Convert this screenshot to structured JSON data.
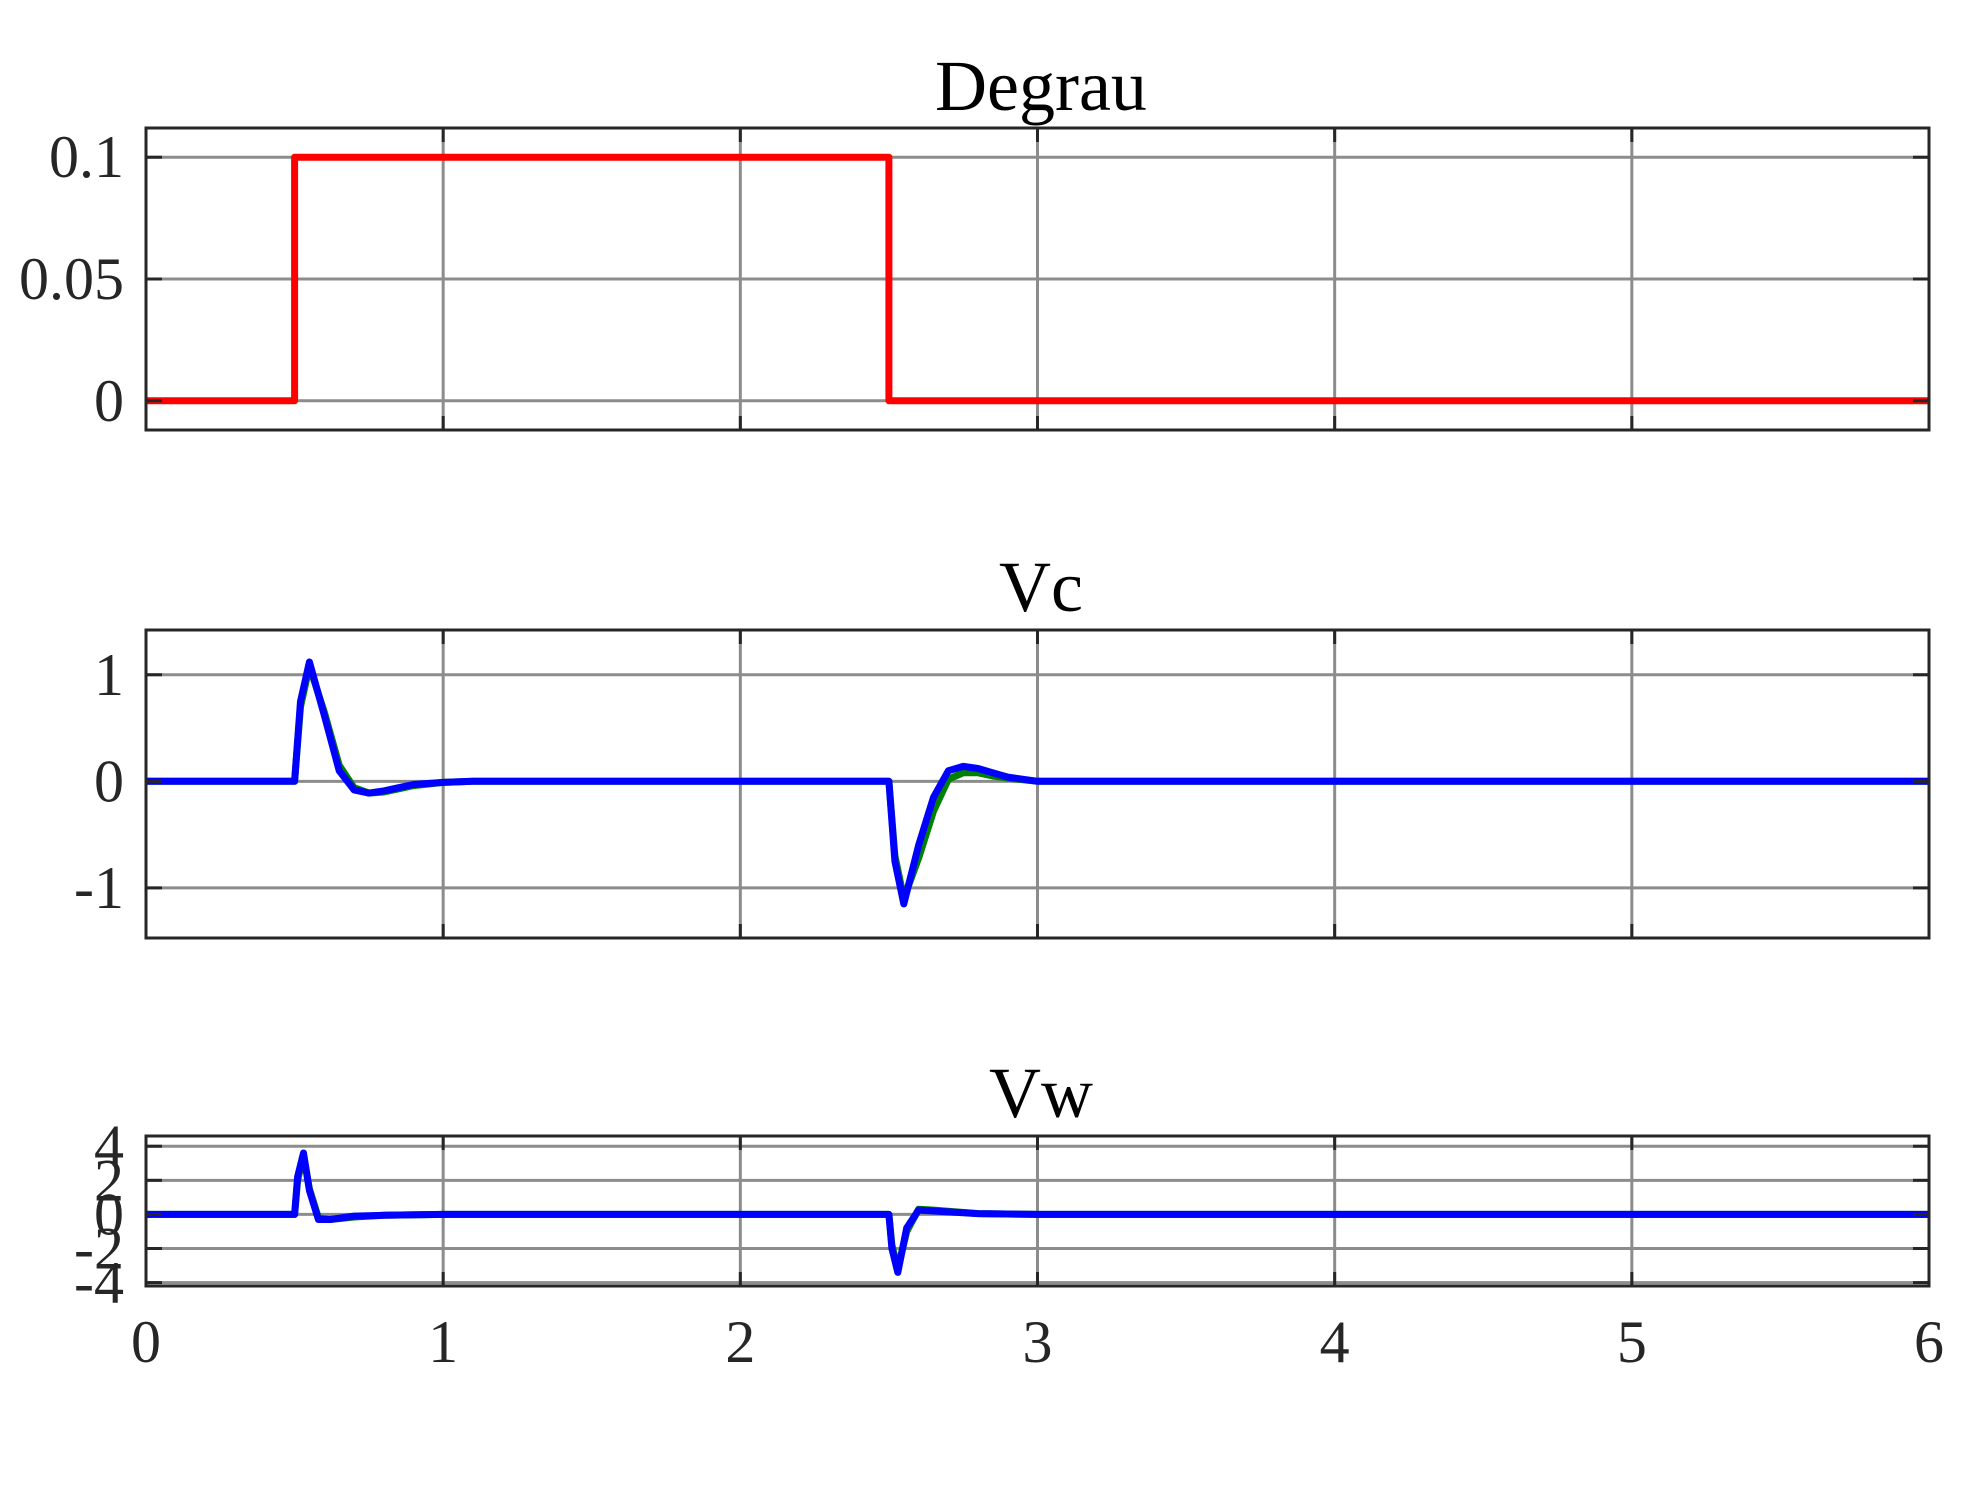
{
  "chart_data": [
    {
      "type": "line",
      "title": "Degrau",
      "xlim": [
        0,
        6
      ],
      "ylim": [
        -0.012,
        0.112
      ],
      "yticks": [
        0,
        0.05,
        0.1
      ],
      "ytick_labels": [
        "0",
        "0.05",
        "0.1"
      ],
      "xticks": [
        0,
        1,
        2,
        3,
        4,
        5,
        6
      ],
      "xtick_labels": [],
      "grid": true,
      "series": [
        {
          "color": "#ff0000",
          "x": [
            0,
            0.5,
            0.5,
            2.5,
            2.5,
            6
          ],
          "y": [
            0,
            0,
            0.1,
            0.1,
            0,
            0
          ]
        }
      ]
    },
    {
      "type": "line",
      "title": "Vc",
      "xlim": [
        0,
        6
      ],
      "ylim": [
        -1.47,
        1.42
      ],
      "yticks": [
        -1,
        0,
        1
      ],
      "ytick_labels": [
        "-1",
        "0",
        "1"
      ],
      "xticks": [
        0,
        1,
        2,
        3,
        4,
        5,
        6
      ],
      "xtick_labels": [],
      "grid": true,
      "series": [
        {
          "color": "#008000",
          "x": [
            0,
            0.5,
            0.52,
            0.55,
            0.6,
            0.65,
            0.7,
            0.75,
            0.8,
            0.85,
            0.9,
            1.0,
            1.1,
            1.5,
            2.5,
            2.52,
            2.55,
            2.6,
            2.65,
            2.7,
            2.75,
            2.8,
            2.85,
            2.9,
            3.0,
            3.1,
            6
          ],
          "y": [
            0,
            0,
            0.7,
            1.08,
            0.65,
            0.15,
            -0.06,
            -0.11,
            -0.1,
            -0.07,
            -0.04,
            -0.01,
            0,
            0,
            0,
            -0.7,
            -1.1,
            -0.72,
            -0.28,
            0.02,
            0.08,
            0.08,
            0.05,
            0.03,
            0,
            0,
            0
          ]
        },
        {
          "color": "#0000ff",
          "x": [
            0,
            0.5,
            0.52,
            0.55,
            0.6,
            0.65,
            0.7,
            0.75,
            0.8,
            0.85,
            0.9,
            1.0,
            1.1,
            1.5,
            2.5,
            2.52,
            2.55,
            2.6,
            2.65,
            2.7,
            2.75,
            2.8,
            2.85,
            2.9,
            3.0,
            3.1,
            6
          ],
          "y": [
            0,
            0,
            0.75,
            1.12,
            0.62,
            0.1,
            -0.08,
            -0.11,
            -0.09,
            -0.06,
            -0.03,
            -0.01,
            0,
            0,
            0,
            -0.75,
            -1.15,
            -0.6,
            -0.15,
            0.1,
            0.14,
            0.12,
            0.08,
            0.04,
            0,
            0,
            0
          ]
        }
      ]
    },
    {
      "type": "line",
      "title": "Vw",
      "xlim": [
        0,
        6
      ],
      "ylim": [
        -4.2,
        4.6
      ],
      "yticks": [
        -4,
        -2,
        0,
        2,
        4
      ],
      "ytick_labels": [
        "-4",
        "-2",
        "0",
        "2",
        "4"
      ],
      "xticks": [
        0,
        1,
        2,
        3,
        4,
        5,
        6
      ],
      "xtick_labels": [
        "0",
        "1",
        "2",
        "3",
        "4",
        "5",
        "6"
      ],
      "grid": true,
      "series": [
        {
          "color": "#008000",
          "x": [
            0,
            0.5,
            0.51,
            0.53,
            0.55,
            0.58,
            0.62,
            0.7,
            0.8,
            1.0,
            2.5,
            2.51,
            2.53,
            2.56,
            2.6,
            2.65,
            2.8,
            3.0,
            6
          ],
          "y": [
            0,
            0,
            2.0,
            3.5,
            1.5,
            -0.2,
            -0.3,
            -0.15,
            -0.05,
            0,
            0,
            -1.8,
            -3.2,
            -1.0,
            0.3,
            0.25,
            0.05,
            0,
            0
          ]
        },
        {
          "color": "#0000ff",
          "x": [
            0,
            0.5,
            0.51,
            0.53,
            0.55,
            0.58,
            0.62,
            0.7,
            0.8,
            1.0,
            2.5,
            2.51,
            2.53,
            2.56,
            2.6,
            2.65,
            2.8,
            3.0,
            6
          ],
          "y": [
            0,
            0,
            2.2,
            3.6,
            1.4,
            -0.3,
            -0.3,
            -0.1,
            -0.05,
            0,
            0,
            -2.0,
            -3.4,
            -0.8,
            0.25,
            0.2,
            0.05,
            0,
            0
          ]
        }
      ]
    }
  ]
}
